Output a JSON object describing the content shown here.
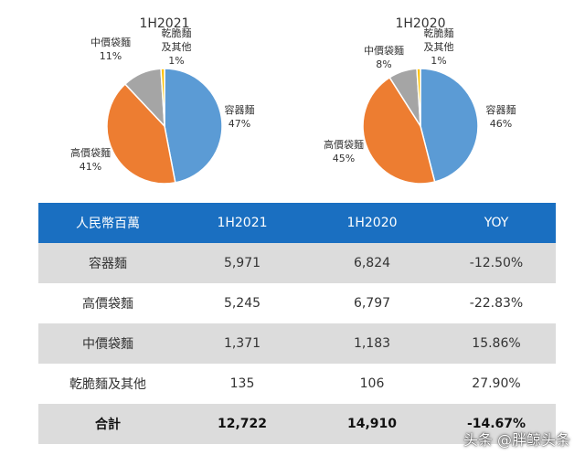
{
  "chart_data": [
    {
      "type": "pie",
      "title": "1H2021",
      "slices": [
        {
          "label": "容器麵",
          "value": 47,
          "display": "47%",
          "color": "#5b9bd5"
        },
        {
          "label": "高價袋麵",
          "value": 41,
          "display": "41%",
          "color": "#ed7d31"
        },
        {
          "label": "中價袋麵",
          "value": 11,
          "display": "11%",
          "color": "#a5a5a5"
        },
        {
          "label": "乾脆麵及其他",
          "label_lines": [
            "乾脆麵",
            "及其他"
          ],
          "value": 1,
          "display": "1%",
          "color": "#ffc000"
        }
      ]
    },
    {
      "type": "pie",
      "title": "1H2020",
      "slices": [
        {
          "label": "容器麵",
          "value": 46,
          "display": "46%",
          "color": "#5b9bd5"
        },
        {
          "label": "高價袋麵",
          "value": 45,
          "display": "45%",
          "color": "#ed7d31"
        },
        {
          "label": "中價袋麵",
          "value": 8,
          "display": "8%",
          "color": "#a5a5a5"
        },
        {
          "label": "乾脆麵及其他",
          "label_lines": [
            "乾脆麵",
            "及其他"
          ],
          "value": 1,
          "display": "1%",
          "color": "#ffc000"
        }
      ]
    }
  ],
  "table": {
    "headers": [
      "人民幣百萬",
      "1H2021",
      "1H2020",
      "YOY"
    ],
    "rows": [
      [
        "容器麵",
        "5,971",
        "6,824",
        "-12.50%"
      ],
      [
        "高價袋麵",
        "5,245",
        "6,797",
        "-22.83%"
      ],
      [
        "中價袋麵",
        "1,371",
        "1,183",
        "15.86%"
      ],
      [
        "乾脆麵及其他",
        "135",
        "106",
        "27.90%"
      ],
      [
        "合計",
        "12,722",
        "14,910",
        "-14.67%"
      ]
    ]
  },
  "watermark": "头条 @胖鲸头条"
}
